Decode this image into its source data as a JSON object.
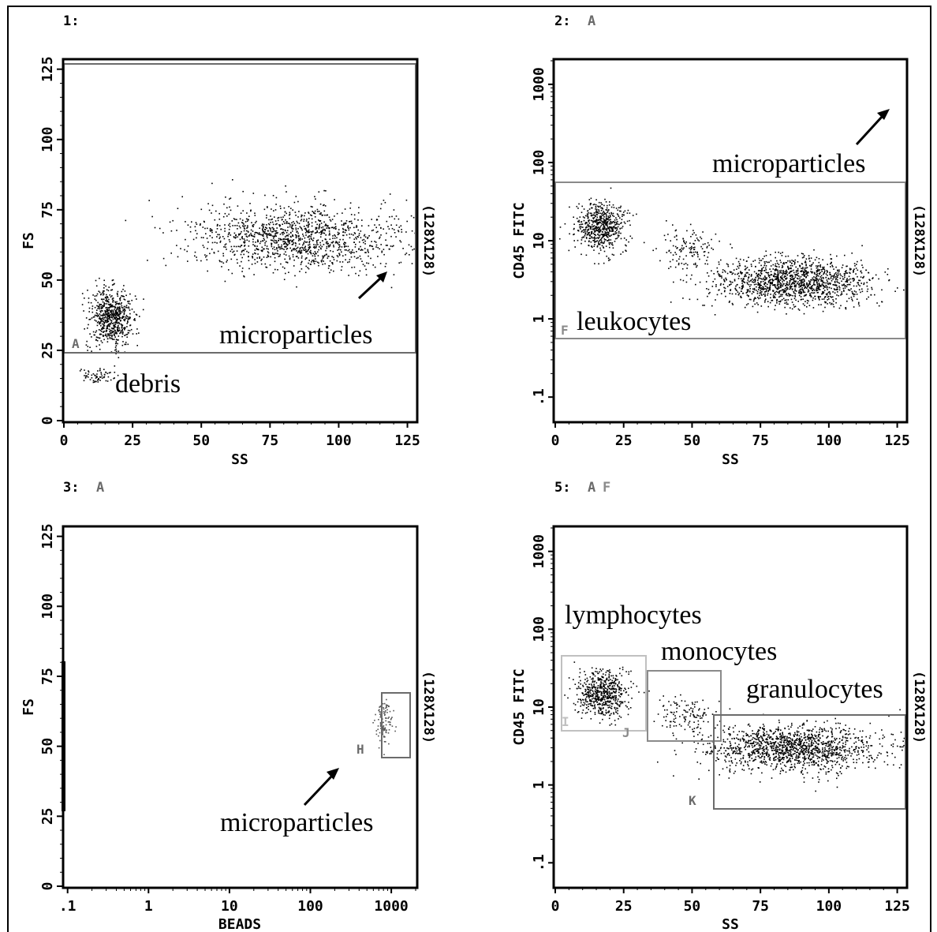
{
  "figure": {
    "panels": [
      {
        "id": "1",
        "header": "1:",
        "xlabel": "SS",
        "ylabel": "FS",
        "resolution": "(128X128)",
        "xticks": [
          "0",
          "25",
          "50",
          "75",
          "100",
          "125"
        ],
        "yticks": [
          "0",
          "25",
          "50",
          "75",
          "100",
          "125"
        ],
        "gate_letters": [
          {
            "name": "A",
            "color": "#6b6b6b"
          }
        ],
        "annotations": [
          "microparticles",
          "debris"
        ]
      },
      {
        "id": "2",
        "header": "2:",
        "header_gates": [
          {
            "name": "A",
            "color": "#6b6b6b"
          }
        ],
        "xlabel": "SS",
        "ylabel": "CD45 FITC",
        "resolution": "(128X128)",
        "xticks": [
          "0",
          "25",
          "50",
          "75",
          "100",
          "125"
        ],
        "yticks": [
          ".1",
          "1",
          "10",
          "100",
          "1000"
        ],
        "gate_letters": [
          {
            "name": "F",
            "color": "#8a8a8a"
          }
        ],
        "annotations": [
          "microparticles",
          "leukocytes"
        ]
      },
      {
        "id": "3",
        "header": "3:",
        "header_gates": [
          {
            "name": "A",
            "color": "#6b6b6b"
          }
        ],
        "xlabel": "BEADS",
        "ylabel": "FS",
        "resolution": "(128X128)",
        "xticks": [
          ".1",
          "1",
          "10",
          "100",
          "1000"
        ],
        "yticks": [
          "0",
          "25",
          "50",
          "75",
          "100",
          "125"
        ],
        "gate_letters": [
          {
            "name": "H",
            "color": "#6b6b6b"
          }
        ],
        "annotations": [
          "microparticles"
        ]
      },
      {
        "id": "5",
        "header": "5:",
        "header_gates": [
          {
            "name": "A",
            "color": "#6b6b6b"
          },
          {
            "name": "F",
            "color": "#8a8a8a"
          }
        ],
        "xlabel": "SS",
        "ylabel": "CD45 FITC",
        "resolution": "(128X128)",
        "xticks": [
          "0",
          "25",
          "50",
          "75",
          "100",
          "125"
        ],
        "yticks": [
          ".1",
          "1",
          "10",
          "100",
          "1000"
        ],
        "gate_letters": [
          {
            "name": "I",
            "color": "#c0c0c0"
          },
          {
            "name": "J",
            "color": "#8a8a8a"
          },
          {
            "name": "K",
            "color": "#6b6b6b"
          }
        ],
        "annotations": [
          "lymphocytes",
          "monocytes",
          "granulocytes"
        ]
      }
    ]
  },
  "chart_data": [
    {
      "type": "scatter",
      "panel": "1",
      "xlabel": "SS",
      "ylabel": "FS",
      "xlim": [
        0,
        128
      ],
      "ylim": [
        0,
        128
      ],
      "gates": [
        {
          "name": "A",
          "shape": "rect",
          "x": [
            0,
            128
          ],
          "y": [
            24,
            127
          ],
          "color": "#6b6b6b"
        }
      ],
      "populations": [
        {
          "label": "debris",
          "center": [
            12,
            16
          ],
          "sd": [
            4,
            1.5
          ],
          "n": 70
        },
        {
          "label": "leukocytes",
          "center": [
            17,
            37
          ],
          "sd": [
            4,
            5
          ],
          "n": 650
        },
        {
          "label": "microparticles",
          "center": [
            85,
            65
          ],
          "sd": [
            20,
            6
          ],
          "n": 1300
        }
      ],
      "annotations": [
        {
          "text": "microparticles",
          "x": 118,
          "y": 29
        },
        {
          "text": "debris",
          "x": 19,
          "y": 9
        },
        {
          "arrow_from": [
            106,
            40
          ],
          "arrow_to": [
            117,
            50
          ]
        }
      ]
    },
    {
      "type": "scatter",
      "panel": "2",
      "xlabel": "SS",
      "ylabel": "CD45 FITC",
      "y_scale": "log",
      "xlim": [
        0,
        128
      ],
      "ylim": [
        0.05,
        2000
      ],
      "gates": [
        {
          "name": "F",
          "shape": "rect",
          "x": [
            0,
            128
          ],
          "y": [
            0.8,
            45
          ],
          "color": "#8a8a8a"
        }
      ],
      "populations": [
        {
          "label": "lymphocytes",
          "center": [
            17,
            15
          ],
          "log_sd": 0.15,
          "sd_x": 4.5,
          "n": 600
        },
        {
          "label": "monocytes",
          "center": [
            48,
            8.5
          ],
          "log_sd": 0.13,
          "sd_x": 5,
          "n": 120
        },
        {
          "label": "granulocytes",
          "center": [
            87,
            3
          ],
          "log_sd": 0.15,
          "sd_x": 15,
          "n": 1400
        }
      ],
      "annotations": [
        {
          "text": "microparticles",
          "x": 90,
          "y": 90
        },
        {
          "text": "leukocytes",
          "x": 31,
          "y": 1.05
        },
        {
          "arrow_from": [
            115,
            125
          ],
          "arrow_to": [
            122,
            600
          ]
        }
      ]
    },
    {
      "type": "scatter",
      "panel": "3",
      "xlabel": "BEADS",
      "ylabel": "FS",
      "x_scale": "log",
      "xlim": [
        0.09,
        2000
      ],
      "ylim": [
        0,
        128
      ],
      "gates": [
        {
          "name": "H",
          "shape": "rect",
          "x": [
            500,
            1350
          ],
          "y": [
            47,
            70
          ],
          "color": "#6b6b6b"
        }
      ],
      "populations": [
        {
          "label": "beads",
          "center": [
            800,
            59
          ],
          "log_sd": 0.05,
          "sd_y": 4,
          "n": 110
        }
      ],
      "annotations": [
        {
          "text": "microparticles",
          "x": 200,
          "y": 25
        },
        {
          "arrow_from": [
            110,
            32
          ],
          "arrow_to": [
            250,
            45
          ]
        }
      ]
    },
    {
      "type": "scatter",
      "panel": "5",
      "xlabel": "SS",
      "ylabel": "CD45 FITC",
      "y_scale": "log",
      "xlim": [
        0,
        128
      ],
      "ylim": [
        0.05,
        2000
      ],
      "gates": [
        {
          "name": "I",
          "shape": "rect",
          "x": [
            3,
            33
          ],
          "y": [
            6.5,
            40
          ],
          "color": "#c0c0c0"
        },
        {
          "name": "J",
          "shape": "rect",
          "x": [
            34,
            60
          ],
          "y": [
            5,
            27
          ],
          "color": "#8a8a8a"
        },
        {
          "name": "K",
          "shape": "rect",
          "x": [
            58,
            128
          ],
          "y": [
            0.78,
            9
          ],
          "color": "#6b6b6b"
        }
      ],
      "populations": [
        {
          "label": "lymphocytes",
          "center": [
            17,
            15
          ],
          "log_sd": 0.15,
          "sd_x": 4.5,
          "n": 600
        },
        {
          "label": "monocytes",
          "center": [
            48,
            8.5
          ],
          "log_sd": 0.13,
          "sd_x": 5,
          "n": 120
        },
        {
          "label": "granulocytes",
          "center": [
            87,
            3
          ],
          "log_sd": 0.15,
          "sd_x": 15,
          "n": 1400
        }
      ],
      "annotations": [
        {
          "text": "lymphocytes",
          "x": 4,
          "y": 90
        },
        {
          "text": "monocytes",
          "x": 38,
          "y": 35
        },
        {
          "text": "granulocytes",
          "x": 69,
          "y": 12
        }
      ]
    }
  ]
}
